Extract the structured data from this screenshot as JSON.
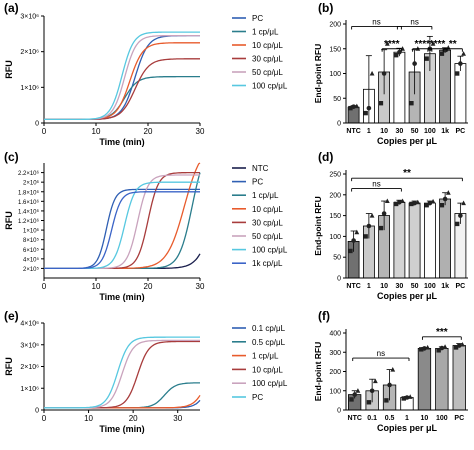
{
  "chart_data": [
    {
      "panel": "(a)",
      "type": "line",
      "xlabel": "Time (min)",
      "ylabel": "RFU",
      "xlim": [
        0,
        30
      ],
      "ylim": [
        0,
        3000000
      ],
      "xticks": [
        "0",
        "10",
        "20",
        "30"
      ],
      "yticks": [
        {
          "v": 0,
          "t": "0"
        },
        {
          "v": 1000000,
          "t": "1×10⁶"
        },
        {
          "v": 2000000,
          "t": "2×10⁶"
        },
        {
          "v": 3000000,
          "t": "3×10⁶"
        }
      ],
      "legend_position": "right",
      "series": [
        {
          "name": "PC",
          "color": "#2f5fb3",
          "v0": 100000,
          "v1": 2450000,
          "t50": 17.5,
          "k": 0.8
        },
        {
          "name": "1 cp/μL",
          "color": "#2a7d8c",
          "v0": 100000,
          "v1": 1300000,
          "t50": 15.5,
          "k": 0.8
        },
        {
          "name": "10 cp/μL",
          "color": "#e85b2c",
          "v0": 100000,
          "v1": 2250000,
          "t50": 16.5,
          "k": 0.8
        },
        {
          "name": "30 cp/μL",
          "color": "#a83c3c",
          "v0": 100000,
          "v1": 1800000,
          "t50": 17.5,
          "k": 0.75
        },
        {
          "name": "50 cp/μL",
          "color": "#c9a3bd",
          "v0": 100000,
          "v1": 2450000,
          "t50": 15.5,
          "k": 0.9
        },
        {
          "name": "100 cp/μL",
          "color": "#57c8e0",
          "v0": 100000,
          "v1": 2550000,
          "t50": 15.0,
          "k": 0.9
        }
      ]
    },
    {
      "panel": "(b)",
      "type": "bar",
      "xlabel": "Copies per μL",
      "ylabel": "End-point RFU",
      "ylim": [
        0,
        200
      ],
      "yticks": [
        "0",
        "50",
        "100",
        "150",
        "200"
      ],
      "categories": [
        "NTC",
        "1",
        "10",
        "30",
        "50",
        "100",
        "1k",
        "PC"
      ],
      "values": [
        32,
        68,
        103,
        143,
        103,
        140,
        147,
        120
      ],
      "errors": [
        3,
        68,
        45,
        8,
        45,
        35,
        5,
        15
      ],
      "points": [
        [
          30,
          33,
          34
        ],
        [
          20,
          30,
          100
        ],
        [
          40,
          100,
          160
        ],
        [
          137,
          143,
          150
        ],
        [
          40,
          120,
          150
        ],
        [
          130,
          150,
          160
        ],
        [
          140,
          147,
          152
        ],
        [
          100,
          120,
          140
        ]
      ],
      "colors": [
        "#707070",
        "#ffffff",
        "#c9c9c9",
        "#ffffff",
        "#b5b5b5",
        "#d3d3d3",
        "#9e9e9e",
        "#ffffff"
      ],
      "annotations": [
        {
          "from": 0,
          "to": 3,
          "label": "ns",
          "level": 195
        },
        {
          "from": 2,
          "to": 3,
          "label": "****",
          "level": 150
        },
        {
          "from": 3,
          "to": 5,
          "label": "ns",
          "level": 195
        },
        {
          "from": 4,
          "to": 5,
          "label": "****",
          "level": 150
        },
        {
          "from": 5,
          "to": 6,
          "label": "****",
          "level": 150
        },
        {
          "from": 6,
          "to": 7,
          "label": "**",
          "level": 150
        }
      ]
    },
    {
      "panel": "(c)",
      "type": "line",
      "xlabel": "Time (min)",
      "ylabel": "RFU",
      "xlim": [
        0,
        30
      ],
      "ylim": [
        0,
        2400000
      ],
      "xticks": [
        "0",
        "10",
        "20",
        "30"
      ],
      "yticks": [
        {
          "v": 200000,
          "t": "2×10⁵"
        },
        {
          "v": 400000,
          "t": "4×10⁵"
        },
        {
          "v": 600000,
          "t": "6×10⁵"
        },
        {
          "v": 800000,
          "t": "8×10⁵"
        },
        {
          "v": 1000000,
          "t": "1×10⁶"
        },
        {
          "v": 1200000,
          "t": "1.2×10⁶"
        },
        {
          "v": 1400000,
          "t": "1.4×10⁶"
        },
        {
          "v": 1600000,
          "t": "1.6×10⁶"
        },
        {
          "v": 1800000,
          "t": "1.8×10⁶"
        },
        {
          "v": 2000000,
          "t": "2×10⁶"
        },
        {
          "v": 2200000,
          "t": "2.2×10⁶"
        }
      ],
      "legend_position": "right",
      "series": [
        {
          "name": "NTC",
          "color": "#1a1f4d",
          "v0": 200000,
          "v1": 3000000,
          "t50": 33.0,
          "k": 0.7
        },
        {
          "name": "PC",
          "color": "#2f5fb3",
          "v0": 200000,
          "v1": 1850000,
          "t50": 12.0,
          "k": 1.2
        },
        {
          "name": "1 cp/μL",
          "color": "#2a7d8c",
          "v0": 200000,
          "v1": 2800000,
          "t50": 28.5,
          "k": 0.8
        },
        {
          "name": "10 cp/μL",
          "color": "#e85b2c",
          "v0": 200000,
          "v1": 2800000,
          "t50": 27.0,
          "k": 0.6
        },
        {
          "name": "30 cp/μL",
          "color": "#a83c3c",
          "v0": 200000,
          "v1": 2200000,
          "t50": 20.0,
          "k": 1.0
        },
        {
          "name": "50 cp/μL",
          "color": "#c9a3bd",
          "v0": 200000,
          "v1": 2150000,
          "t50": 18.0,
          "k": 1.0
        },
        {
          "name": "100 cp/μL",
          "color": "#57c8e0",
          "v0": 200000,
          "v1": 2000000,
          "t50": 15.5,
          "k": 1.0
        },
        {
          "name": "1k cp/μL",
          "color": "#3b64c7",
          "v0": 200000,
          "v1": 1800000,
          "t50": 13.0,
          "k": 1.1
        }
      ]
    },
    {
      "panel": "(d)",
      "type": "bar",
      "xlabel": "Copies per μL",
      "ylabel": "End-point RFU",
      "ylim": [
        0,
        250
      ],
      "yticks": [
        "0",
        "50",
        "100",
        "150",
        "200",
        "250"
      ],
      "categories": [
        "NTC",
        "1",
        "10",
        "30",
        "50",
        "100",
        "1k",
        "PC"
      ],
      "values": [
        88,
        125,
        150,
        182,
        180,
        180,
        190,
        155
      ],
      "errors": [
        25,
        30,
        35,
        5,
        5,
        5,
        15,
        25
      ],
      "points": [
        [
          65,
          90,
          110
        ],
        [
          100,
          125,
          150
        ],
        [
          120,
          155,
          185
        ],
        [
          178,
          182,
          185
        ],
        [
          178,
          180,
          182
        ],
        [
          175,
          180,
          184
        ],
        [
          175,
          190,
          205
        ],
        [
          130,
          150,
          180
        ]
      ],
      "colors": [
        "#707070",
        "#c9c9c9",
        "#b5b5b5",
        "#d3d3d3",
        "#cfcfcf",
        "#ffffff",
        "#b0b0b0",
        "#f2f2f2"
      ],
      "annotations": [
        {
          "from": 0,
          "to": 3,
          "label": "ns",
          "level": 215
        },
        {
          "from": 0,
          "to": 7,
          "label": "**",
          "level": 240
        }
      ]
    },
    {
      "panel": "(e)",
      "type": "line",
      "xlabel": "Time (min)",
      "ylabel": "RFU",
      "xlim": [
        0,
        35
      ],
      "ylim": [
        0,
        4000000
      ],
      "xticks": [
        "0",
        "10",
        "20",
        "30"
      ],
      "yticks": [
        {
          "v": 0,
          "t": "0"
        },
        {
          "v": 1000000,
          "t": "1×10⁶"
        },
        {
          "v": 2000000,
          "t": "2×10⁶"
        },
        {
          "v": 3000000,
          "t": "3×10⁶"
        },
        {
          "v": 4000000,
          "t": "4×10⁶"
        }
      ],
      "legend_position": "right",
      "series": [
        {
          "name": "0.1 cp/μL",
          "color": "#2f5fb3",
          "v0": 100000,
          "v1": 3000000,
          "t50": 37.5,
          "k": 0.8
        },
        {
          "name": "0.5 cp/μL",
          "color": "#2a7d8c",
          "v0": 100000,
          "v1": 1250000,
          "t50": 27.0,
          "k": 0.8
        },
        {
          "name": "1 cp/μL",
          "color": "#e85b2c",
          "v0": 100000,
          "v1": 3000000,
          "t50": 37.0,
          "k": 0.7
        },
        {
          "name": "10 cp/μL",
          "color": "#a83c3c",
          "v0": 100000,
          "v1": 3150000,
          "t50": 21.0,
          "k": 0.8
        },
        {
          "name": "100 cp/μL",
          "color": "#c9a3bd",
          "v0": 100000,
          "v1": 3200000,
          "t50": 17.5,
          "k": 0.8
        },
        {
          "name": "PC",
          "color": "#57c8e0",
          "v0": 100000,
          "v1": 3350000,
          "t50": 16.5,
          "k": 0.8
        }
      ]
    },
    {
      "panel": "(f)",
      "type": "bar",
      "xlabel": "Copies per μL",
      "ylabel": "End-point RFU",
      "ylim": [
        0,
        400
      ],
      "yticks": [
        "0",
        "100",
        "200",
        "300",
        "400"
      ],
      "categories": [
        "NTC",
        "0.1",
        "0.5",
        "1",
        "10",
        "100",
        "PC"
      ],
      "values": [
        80,
        100,
        130,
        65,
        320,
        320,
        335
      ],
      "errors": [
        20,
        60,
        80,
        5,
        5,
        8,
        10
      ],
      "points": [
        [
          55,
          80,
          100
        ],
        [
          40,
          100,
          150
        ],
        [
          50,
          130,
          210
        ],
        [
          60,
          65,
          68
        ],
        [
          315,
          320,
          325
        ],
        [
          310,
          322,
          328
        ],
        [
          325,
          335,
          340
        ]
      ],
      "colors": [
        "#707070",
        "#c9c9c9",
        "#b5b5b5",
        "#ffffff",
        "#8a8a8a",
        "#a8a8a8",
        "#bdbdbd"
      ],
      "annotations": [
        {
          "from": 0,
          "to": 3,
          "label": "ns",
          "level": 270
        },
        {
          "from": 4,
          "to": 6,
          "label": "***",
          "level": 380
        }
      ]
    }
  ]
}
